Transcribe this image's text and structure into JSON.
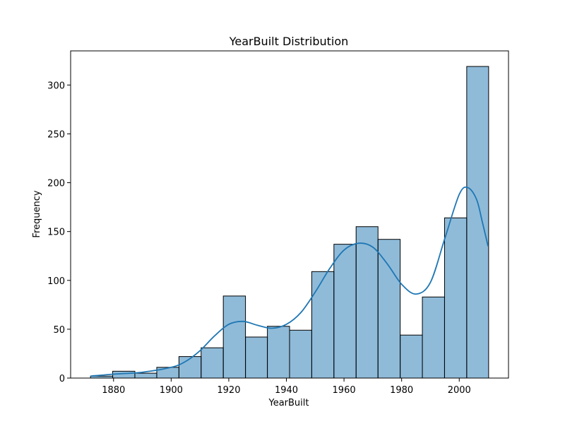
{
  "chart_data": {
    "type": "bar",
    "title": "YearBuilt Distribution",
    "xlabel": "YearBuilt",
    "ylabel": "Frequency",
    "bin_width": 7.68,
    "bins": [
      {
        "start": 1872.0,
        "end": 1879.7,
        "count": 2
      },
      {
        "start": 1879.7,
        "end": 1887.4,
        "count": 7
      },
      {
        "start": 1887.4,
        "end": 1895.0,
        "count": 5
      },
      {
        "start": 1895.0,
        "end": 1902.7,
        "count": 11
      },
      {
        "start": 1902.7,
        "end": 1910.4,
        "count": 22
      },
      {
        "start": 1910.4,
        "end": 1918.1,
        "count": 31
      },
      {
        "start": 1918.1,
        "end": 1925.8,
        "count": 84
      },
      {
        "start": 1925.8,
        "end": 1933.4,
        "count": 42
      },
      {
        "start": 1933.4,
        "end": 1941.1,
        "count": 53
      },
      {
        "start": 1941.1,
        "end": 1948.8,
        "count": 49
      },
      {
        "start": 1948.8,
        "end": 1956.5,
        "count": 109
      },
      {
        "start": 1956.5,
        "end": 1964.2,
        "count": 137
      },
      {
        "start": 1964.2,
        "end": 1971.8,
        "count": 155
      },
      {
        "start": 1971.8,
        "end": 1979.5,
        "count": 142
      },
      {
        "start": 1979.5,
        "end": 1987.2,
        "count": 44
      },
      {
        "start": 1987.2,
        "end": 1994.9,
        "count": 83
      },
      {
        "start": 1994.9,
        "end": 2002.6,
        "count": 164
      },
      {
        "start": 2002.6,
        "end": 2010.2,
        "count": 319
      }
    ],
    "kde": {
      "x": [
        1872,
        1880,
        1890,
        1900,
        1905,
        1910,
        1915,
        1920,
        1925,
        1930,
        1935,
        1940,
        1945,
        1950,
        1955,
        1960,
        1965,
        1970,
        1975,
        1980,
        1985,
        1990,
        1995,
        2000,
        2003,
        2006,
        2008,
        2010
      ],
      "y": [
        2,
        4,
        6,
        11,
        17,
        28,
        43,
        55,
        58,
        54,
        51,
        55,
        67,
        88,
        112,
        131,
        138,
        134,
        117,
        96,
        86,
        98,
        143,
        188,
        195,
        183,
        160,
        135
      ]
    },
    "xlim": [
      1865.1,
      2017.1
    ],
    "ylim": [
      0,
      334.95
    ],
    "xticks": [
      1880,
      1900,
      1920,
      1940,
      1960,
      1980,
      2000
    ],
    "yticks": [
      0,
      50,
      100,
      150,
      200,
      250,
      300
    ],
    "bar_color": "#1f77b4",
    "bar_alpha": 0.5,
    "line_color": "#1f77b4",
    "grid": false,
    "legend": false
  }
}
